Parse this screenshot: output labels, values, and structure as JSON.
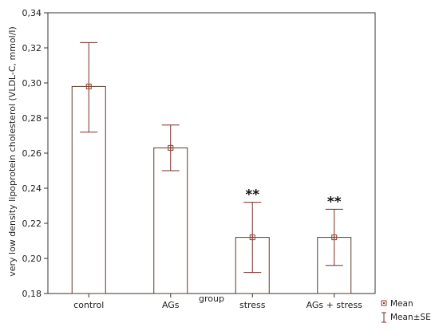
{
  "chart_data": {
    "type": "bar",
    "title": "",
    "xlabel": "group",
    "ylabel": "very low density lipoprotein cholesterol (VLDL-C, mmol/l)",
    "categories": [
      "control",
      "AGs",
      "stress",
      "AGs + stress"
    ],
    "series": [
      {
        "name": "Mean",
        "values": [
          0.298,
          0.263,
          0.212,
          0.212
        ],
        "se_lower": [
          0.272,
          0.25,
          0.192,
          0.196
        ],
        "se_upper": [
          0.323,
          0.276,
          0.232,
          0.228
        ]
      }
    ],
    "annotations": [
      "",
      "",
      "**",
      "**"
    ],
    "ylim": [
      0.18,
      0.34
    ],
    "yticks": [
      "0,18",
      "0,20",
      "0,22",
      "0,24",
      "0,26",
      "0,28",
      "0,30",
      "0,32",
      "0,34"
    ],
    "grid": false,
    "legend": {
      "placement": "bottom-right",
      "entries": [
        "Mean",
        "Mean±SE"
      ]
    },
    "colors": {
      "bar_fill": "#ffffff",
      "bar_stroke": "#5a3a2a",
      "marker": "#8b3a2a",
      "error_bar": "#7a2e24",
      "axis": "#333333"
    }
  }
}
